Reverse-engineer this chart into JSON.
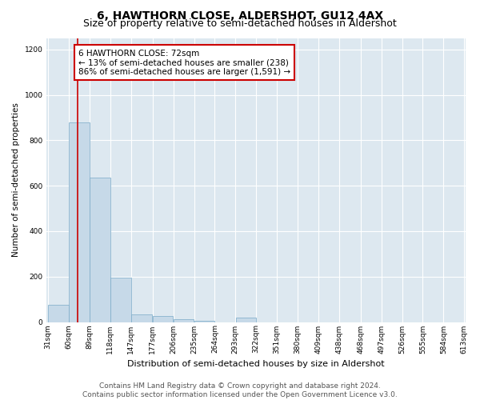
{
  "title": "6, HAWTHORN CLOSE, ALDERSHOT, GU12 4AX",
  "subtitle": "Size of property relative to semi-detached houses in Aldershot",
  "xlabel": "Distribution of semi-detached houses by size in Aldershot",
  "ylabel": "Number of semi-detached properties",
  "footer_line1": "Contains HM Land Registry data © Crown copyright and database right 2024.",
  "footer_line2": "Contains public sector information licensed under the Open Government Licence v3.0.",
  "annotation_title": "6 HAWTHORN CLOSE: 72sqm",
  "annotation_line1": "← 13% of semi-detached houses are smaller (238)",
  "annotation_line2": "86% of semi-detached houses are larger (1,591) →",
  "property_size": 72,
  "bin_starts": [
    31,
    60,
    89,
    118,
    147,
    177,
    206,
    235,
    264,
    293,
    322,
    351,
    380,
    409,
    438,
    468,
    497,
    526,
    555,
    584
  ],
  "bin_labels": [
    "31sqm",
    "60sqm",
    "89sqm",
    "118sqm",
    "147sqm",
    "177sqm",
    "206sqm",
    "235sqm",
    "264sqm",
    "293sqm",
    "322sqm",
    "351sqm",
    "380sqm",
    "409sqm",
    "438sqm",
    "468sqm",
    "497sqm",
    "526sqm",
    "555sqm",
    "584sqm",
    "613sqm"
  ],
  "bar_heights": [
    75,
    880,
    635,
    195,
    35,
    25,
    13,
    5,
    0,
    20,
    0,
    0,
    0,
    0,
    0,
    0,
    0,
    0,
    0,
    0
  ],
  "bar_color": "#c6d9e8",
  "bar_edge_color": "#7aaac8",
  "vline_color": "#cc0000",
  "vline_x": 72,
  "annotation_box_color": "#cc0000",
  "ylim": [
    0,
    1250
  ],
  "yticks": [
    0,
    200,
    400,
    600,
    800,
    1000,
    1200
  ],
  "plot_background": "#dde8f0",
  "grid_color": "#ffffff",
  "title_fontsize": 10,
  "subtitle_fontsize": 9,
  "annotation_fontsize": 7.5,
  "ylabel_fontsize": 7.5,
  "xlabel_fontsize": 8,
  "tick_fontsize": 6.5,
  "footer_fontsize": 6.5
}
